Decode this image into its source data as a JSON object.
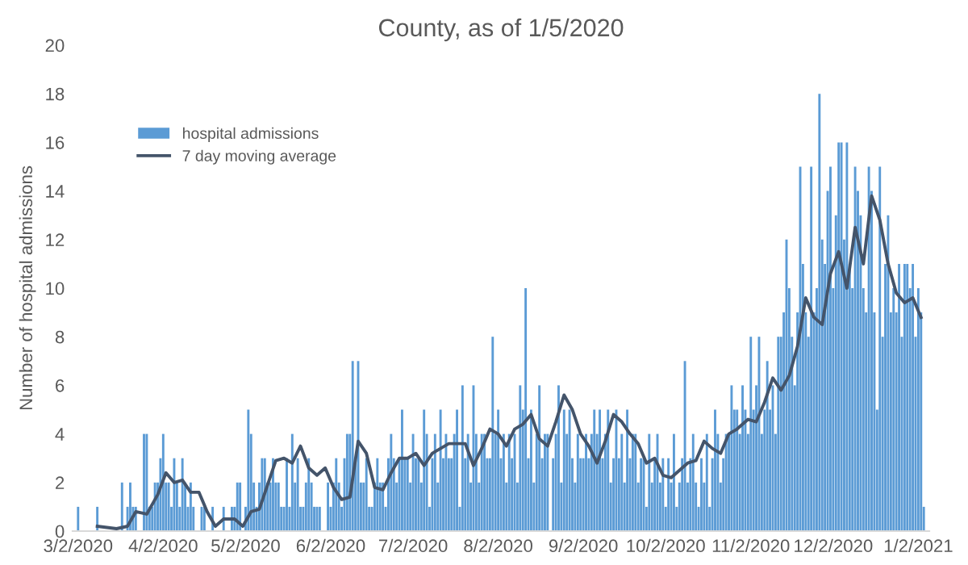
{
  "chart_data": {
    "type": "bar",
    "title": "County, as of 1/5/2020",
    "ylabel": "Number of hospital admissions",
    "series": [
      {
        "name": "hospital admissions",
        "color": "#5b9bd5",
        "x": [
          "2020-03-02",
          "2020-03-03",
          "2020-03-04",
          "2020-03-05",
          "2020-03-06",
          "2020-03-07",
          "2020-03-08",
          "2020-03-09",
          "2020-03-10",
          "2020-03-11",
          "2020-03-12",
          "2020-03-13",
          "2020-03-14",
          "2020-03-15",
          "2020-03-16",
          "2020-03-17",
          "2020-03-18",
          "2020-03-19",
          "2020-03-20",
          "2020-03-21",
          "2020-03-22",
          "2020-03-23",
          "2020-03-24",
          "2020-03-25",
          "2020-03-26",
          "2020-03-27",
          "2020-03-28",
          "2020-03-29",
          "2020-03-30",
          "2020-03-31",
          "2020-04-01",
          "2020-04-02",
          "2020-04-03",
          "2020-04-04",
          "2020-04-05",
          "2020-04-06",
          "2020-04-07",
          "2020-04-08",
          "2020-04-09",
          "2020-04-10",
          "2020-04-11",
          "2020-04-12",
          "2020-04-13",
          "2020-04-14",
          "2020-04-15",
          "2020-04-16",
          "2020-04-17",
          "2020-04-18",
          "2020-04-19",
          "2020-04-20",
          "2020-04-21",
          "2020-04-22",
          "2020-04-23",
          "2020-04-24",
          "2020-04-25",
          "2020-04-26",
          "2020-04-27",
          "2020-04-28",
          "2020-04-29",
          "2020-04-30",
          "2020-05-01",
          "2020-05-02",
          "2020-05-03",
          "2020-05-04",
          "2020-05-05",
          "2020-05-06",
          "2020-05-07",
          "2020-05-08",
          "2020-05-09",
          "2020-05-10",
          "2020-05-11",
          "2020-05-12",
          "2020-05-13",
          "2020-05-14",
          "2020-05-15",
          "2020-05-16",
          "2020-05-17",
          "2020-05-18",
          "2020-05-19",
          "2020-05-20",
          "2020-05-21",
          "2020-05-22",
          "2020-05-23",
          "2020-05-24",
          "2020-05-25",
          "2020-05-26",
          "2020-05-27",
          "2020-05-28",
          "2020-05-29",
          "2020-05-30",
          "2020-05-31",
          "2020-06-01",
          "2020-06-02",
          "2020-06-03",
          "2020-06-04",
          "2020-06-05",
          "2020-06-06",
          "2020-06-07",
          "2020-06-08",
          "2020-06-09",
          "2020-06-10",
          "2020-06-11",
          "2020-06-12",
          "2020-06-13",
          "2020-06-14",
          "2020-06-15",
          "2020-06-16",
          "2020-06-17",
          "2020-06-18",
          "2020-06-19",
          "2020-06-20",
          "2020-06-21",
          "2020-06-22",
          "2020-06-23",
          "2020-06-24",
          "2020-06-25",
          "2020-06-26",
          "2020-06-27",
          "2020-06-28",
          "2020-06-29",
          "2020-06-30",
          "2020-07-01",
          "2020-07-02",
          "2020-07-03",
          "2020-07-04",
          "2020-07-05",
          "2020-07-06",
          "2020-07-07",
          "2020-07-08",
          "2020-07-09",
          "2020-07-10",
          "2020-07-11",
          "2020-07-12",
          "2020-07-13",
          "2020-07-14",
          "2020-07-15",
          "2020-07-16",
          "2020-07-17",
          "2020-07-18",
          "2020-07-19",
          "2020-07-20",
          "2020-07-21",
          "2020-07-22",
          "2020-07-23",
          "2020-07-24",
          "2020-07-25",
          "2020-07-26",
          "2020-07-27",
          "2020-07-28",
          "2020-07-29",
          "2020-07-30",
          "2020-07-31",
          "2020-08-01",
          "2020-08-02",
          "2020-08-03",
          "2020-08-04",
          "2020-08-05",
          "2020-08-06",
          "2020-08-07",
          "2020-08-08",
          "2020-08-09",
          "2020-08-10",
          "2020-08-11",
          "2020-08-12",
          "2020-08-13",
          "2020-08-14",
          "2020-08-15",
          "2020-08-16",
          "2020-08-17",
          "2020-08-18",
          "2020-08-19",
          "2020-08-20",
          "2020-08-21",
          "2020-08-22",
          "2020-08-23",
          "2020-08-24",
          "2020-08-25",
          "2020-08-26",
          "2020-08-27",
          "2020-08-28",
          "2020-08-29",
          "2020-08-30",
          "2020-08-31",
          "2020-09-01",
          "2020-09-02",
          "2020-09-03",
          "2020-09-04",
          "2020-09-05",
          "2020-09-06",
          "2020-09-07",
          "2020-09-08",
          "2020-09-09",
          "2020-09-10",
          "2020-09-11",
          "2020-09-12",
          "2020-09-13",
          "2020-09-14",
          "2020-09-15",
          "2020-09-16",
          "2020-09-17",
          "2020-09-18",
          "2020-09-19",
          "2020-09-20",
          "2020-09-21",
          "2020-09-22",
          "2020-09-23",
          "2020-09-24",
          "2020-09-25",
          "2020-09-26",
          "2020-09-27",
          "2020-09-28",
          "2020-09-29",
          "2020-09-30",
          "2020-10-01",
          "2020-10-02",
          "2020-10-03",
          "2020-10-04",
          "2020-10-05",
          "2020-10-06",
          "2020-10-07",
          "2020-10-08",
          "2020-10-09",
          "2020-10-10",
          "2020-10-11",
          "2020-10-12",
          "2020-10-13",
          "2020-10-14",
          "2020-10-15",
          "2020-10-16",
          "2020-10-17",
          "2020-10-18",
          "2020-10-19",
          "2020-10-20",
          "2020-10-21",
          "2020-10-22",
          "2020-10-23",
          "2020-10-24",
          "2020-10-25",
          "2020-10-26",
          "2020-10-27",
          "2020-10-28",
          "2020-10-29",
          "2020-10-30",
          "2020-10-31",
          "2020-11-01",
          "2020-11-02",
          "2020-11-03",
          "2020-11-04",
          "2020-11-05",
          "2020-11-06",
          "2020-11-07",
          "2020-11-08",
          "2020-11-09",
          "2020-11-10",
          "2020-11-11",
          "2020-11-12",
          "2020-11-13",
          "2020-11-14",
          "2020-11-15",
          "2020-11-16",
          "2020-11-17",
          "2020-11-18",
          "2020-11-19",
          "2020-11-20",
          "2020-11-21",
          "2020-11-22",
          "2020-11-23",
          "2020-11-24",
          "2020-11-25",
          "2020-11-26",
          "2020-11-27",
          "2020-11-28",
          "2020-11-29",
          "2020-11-30",
          "2020-12-01",
          "2020-12-02",
          "2020-12-03",
          "2020-12-04",
          "2020-12-05",
          "2020-12-06",
          "2020-12-07",
          "2020-12-08",
          "2020-12-09",
          "2020-12-10",
          "2020-12-11",
          "2020-12-12",
          "2020-12-13",
          "2020-12-14",
          "2020-12-15",
          "2020-12-16",
          "2020-12-17",
          "2020-12-18",
          "2020-12-19",
          "2020-12-20",
          "2020-12-21",
          "2020-12-22",
          "2020-12-23",
          "2020-12-24",
          "2020-12-25",
          "2020-12-26",
          "2020-12-27",
          "2020-12-28",
          "2020-12-29",
          "2020-12-30",
          "2020-12-31",
          "2021-01-01",
          "2021-01-02",
          "2021-01-03",
          "2021-01-04"
        ],
        "values": [
          1,
          0,
          0,
          0,
          0,
          0,
          0,
          1,
          0,
          0,
          0,
          0,
          0,
          0,
          0,
          0,
          2,
          0,
          1,
          2,
          1,
          1,
          0,
          0,
          4,
          4,
          1,
          1,
          2,
          2,
          3,
          4,
          2,
          2,
          1,
          3,
          2,
          1,
          3,
          2,
          1,
          2,
          1,
          0,
          0,
          1,
          1,
          0,
          0,
          1,
          0,
          0,
          0,
          1,
          0,
          0,
          1,
          1,
          2,
          2,
          0,
          1,
          5,
          4,
          2,
          1,
          2,
          3,
          3,
          2,
          2,
          3,
          2,
          2,
          1,
          1,
          3,
          1,
          4,
          2,
          3,
          1,
          1,
          2,
          3,
          2,
          1,
          1,
          1,
          0,
          0,
          2,
          1,
          2,
          3,
          2,
          1,
          3,
          4,
          4,
          7,
          3,
          7,
          2,
          2,
          3,
          1,
          1,
          2,
          3,
          2,
          2,
          1,
          3,
          4,
          3,
          2,
          3,
          5,
          3,
          3,
          2,
          4,
          3,
          3,
          2,
          5,
          4,
          1,
          3,
          4,
          2,
          5,
          3,
          4,
          3,
          3,
          4,
          5,
          1,
          6,
          3,
          4,
          2,
          6,
          4,
          2,
          4,
          4,
          3,
          3,
          8,
          4,
          5,
          3,
          4,
          2,
          4,
          3,
          4,
          2,
          6,
          5,
          10,
          3,
          5,
          2,
          4,
          6,
          3,
          4,
          4,
          0,
          3,
          4,
          6,
          2,
          5,
          4,
          5,
          3,
          2,
          4,
          3,
          3,
          4,
          3,
          4,
          5,
          4,
          5,
          3,
          4,
          5,
          2,
          3,
          5,
          3,
          4,
          2,
          5,
          3,
          4,
          4,
          2,
          3,
          3,
          1,
          4,
          2,
          3,
          4,
          2,
          3,
          1,
          3,
          2,
          4,
          1,
          2,
          3,
          7,
          2,
          3,
          4,
          2,
          1,
          3,
          2,
          4,
          1,
          3,
          5,
          4,
          2,
          3,
          4,
          4,
          6,
          5,
          5,
          4,
          6,
          5,
          4,
          8,
          5,
          6,
          8,
          4,
          5,
          7,
          5,
          6,
          4,
          8,
          8,
          9,
          12,
          10,
          8,
          6,
          9,
          15,
          11,
          9,
          8,
          15,
          9,
          10,
          18,
          12,
          11,
          14,
          15,
          10,
          13,
          16,
          16,
          12,
          16,
          11,
          10,
          15,
          14,
          13,
          10,
          9,
          15,
          14,
          9,
          5,
          15,
          8,
          11,
          13,
          9,
          10,
          9,
          11,
          8,
          11,
          11,
          10,
          11,
          8,
          10,
          9,
          1
        ]
      },
      {
        "name": "7 day moving average",
        "type": "line",
        "color": "#44546a",
        "x": [
          "2020-03-09",
          "2020-03-16",
          "2020-03-20",
          "2020-03-23",
          "2020-03-27",
          "2020-03-31",
          "2020-04-03",
          "2020-04-06",
          "2020-04-09",
          "2020-04-12",
          "2020-04-15",
          "2020-04-18",
          "2020-04-21",
          "2020-04-24",
          "2020-04-28",
          "2020-05-01",
          "2020-05-04",
          "2020-05-07",
          "2020-05-10",
          "2020-05-13",
          "2020-05-16",
          "2020-05-19",
          "2020-05-22",
          "2020-05-25",
          "2020-05-28",
          "2020-05-31",
          "2020-06-03",
          "2020-06-06",
          "2020-06-09",
          "2020-06-12",
          "2020-06-15",
          "2020-06-18",
          "2020-06-21",
          "2020-06-24",
          "2020-06-27",
          "2020-06-30",
          "2020-07-03",
          "2020-07-06",
          "2020-07-09",
          "2020-07-12",
          "2020-07-15",
          "2020-07-18",
          "2020-07-21",
          "2020-07-24",
          "2020-07-27",
          "2020-07-30",
          "2020-08-02",
          "2020-08-05",
          "2020-08-08",
          "2020-08-11",
          "2020-08-14",
          "2020-08-17",
          "2020-08-20",
          "2020-08-23",
          "2020-08-26",
          "2020-08-29",
          "2020-09-01",
          "2020-09-04",
          "2020-09-07",
          "2020-09-10",
          "2020-09-13",
          "2020-09-16",
          "2020-09-19",
          "2020-09-22",
          "2020-09-25",
          "2020-09-28",
          "2020-10-01",
          "2020-10-04",
          "2020-10-07",
          "2020-10-10",
          "2020-10-13",
          "2020-10-16",
          "2020-10-19",
          "2020-10-22",
          "2020-10-25",
          "2020-10-28",
          "2020-11-01",
          "2020-11-04",
          "2020-11-07",
          "2020-11-10",
          "2020-11-13",
          "2020-11-16",
          "2020-11-19",
          "2020-11-22",
          "2020-11-25",
          "2020-11-28",
          "2020-12-01",
          "2020-12-04",
          "2020-12-07",
          "2020-12-10",
          "2020-12-13",
          "2020-12-16",
          "2020-12-19",
          "2020-12-22",
          "2020-12-25",
          "2020-12-28",
          "2020-12-31",
          "2021-01-03"
        ],
        "values": [
          0.2,
          0.1,
          0.2,
          0.8,
          0.7,
          1.5,
          2.4,
          2.0,
          2.1,
          1.6,
          1.6,
          0.8,
          0.2,
          0.5,
          0.5,
          0.2,
          0.8,
          0.9,
          1.9,
          2.9,
          3.0,
          2.8,
          3.5,
          2.6,
          2.3,
          2.6,
          1.8,
          1.3,
          1.4,
          3.7,
          3.2,
          1.8,
          1.7,
          2.4,
          3.0,
          3.0,
          3.2,
          2.7,
          3.2,
          3.4,
          3.6,
          3.6,
          3.6,
          2.7,
          3.4,
          4.2,
          4.0,
          3.5,
          4.2,
          4.4,
          4.8,
          3.8,
          3.5,
          4.5,
          5.6,
          5.0,
          4.0,
          3.5,
          2.8,
          3.7,
          4.8,
          4.5,
          4.0,
          3.6,
          2.8,
          3.0,
          2.3,
          2.2,
          2.5,
          2.8,
          2.9,
          3.7,
          3.4,
          3.2,
          4.0,
          4.2,
          4.6,
          4.5,
          5.3,
          6.3,
          5.8,
          6.4,
          7.6,
          9.6,
          8.8,
          8.5,
          10.6,
          11.5,
          10.0,
          12.5,
          11.0,
          13.8,
          12.8,
          11.0,
          9.8,
          9.4,
          9.6,
          8.8
        ]
      }
    ],
    "xlim": [
      "2020-02-29",
      "2021-01-06"
    ],
    "xticks": [
      {
        "value": "2020-03-02",
        "label": "3/2/2020"
      },
      {
        "value": "2020-04-02",
        "label": "4/2/2020"
      },
      {
        "value": "2020-05-02",
        "label": "5/2/2020"
      },
      {
        "value": "2020-06-02",
        "label": "6/2/2020"
      },
      {
        "value": "2020-07-02",
        "label": "7/2/2020"
      },
      {
        "value": "2020-08-02",
        "label": "8/2/2020"
      },
      {
        "value": "2020-09-02",
        "label": "9/2/2020"
      },
      {
        "value": "2020-10-02",
        "label": "10/2/2020"
      },
      {
        "value": "2020-11-02",
        "label": "11/2/2020"
      },
      {
        "value": "2020-12-02",
        "label": "12/2/2020"
      },
      {
        "value": "2021-01-02",
        "label": "1/2/2021"
      }
    ],
    "ylim": [
      0,
      20
    ],
    "yticks": [
      0,
      2,
      4,
      6,
      8,
      10,
      12,
      14,
      16,
      18,
      20
    ],
    "grid": false,
    "legend": "top left"
  }
}
